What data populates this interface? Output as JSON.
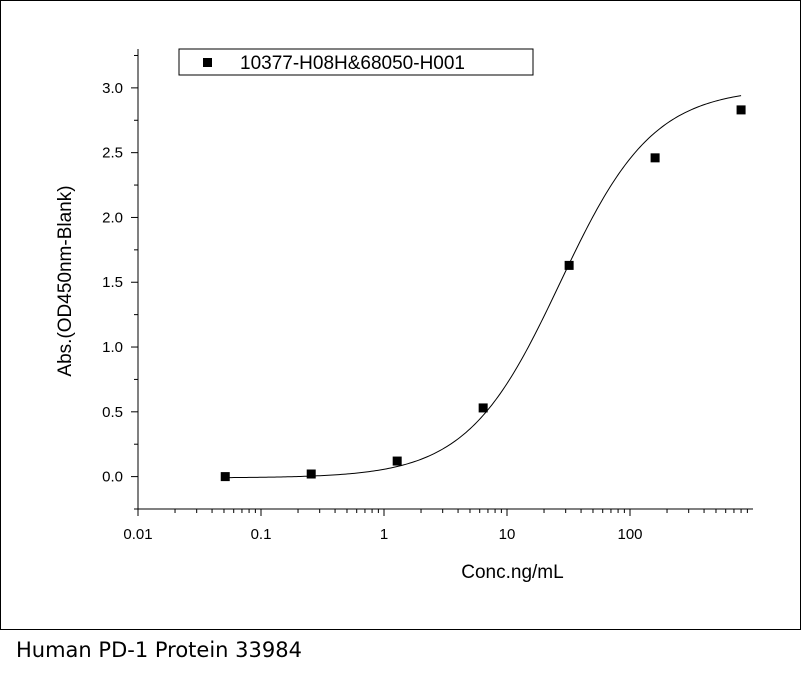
{
  "caption": "Human PD-1 Protein 33984",
  "chart_data": {
    "type": "scatter",
    "title": "",
    "xlabel": "Conc.ng/mL",
    "ylabel": "Abs.(OD450nm-Blank)",
    "x_scale": "log",
    "xlim": [
      0.01,
      1000
    ],
    "ylim": [
      -0.25,
      3.3
    ],
    "x_ticks": [
      0.01,
      0.1,
      1,
      10,
      100
    ],
    "x_tick_labels": [
      "0.01",
      "0.1",
      "1",
      "10",
      "100"
    ],
    "y_ticks": [
      0,
      0.5,
      1,
      1.5,
      2,
      2.5,
      3
    ],
    "y_tick_labels": [
      "0.0",
      "0.5",
      "1.0",
      "1.5",
      "2.0",
      "2.5",
      "3.0"
    ],
    "grid": false,
    "legend_position": "top",
    "series": [
      {
        "name": "10377-H08H&68050-H001",
        "color": "#000000",
        "marker": "square",
        "x": [
          0.0512,
          0.256,
          1.28,
          6.4,
          32,
          160,
          800
        ],
        "y": [
          0.0,
          0.02,
          0.12,
          0.53,
          1.63,
          2.46,
          2.83
        ]
      }
    ],
    "fit_curve": {
      "model": "4PL",
      "bottom": -0.01,
      "top": 3.0,
      "ec50": 27,
      "hill": 1.15,
      "color": "#000000"
    }
  }
}
